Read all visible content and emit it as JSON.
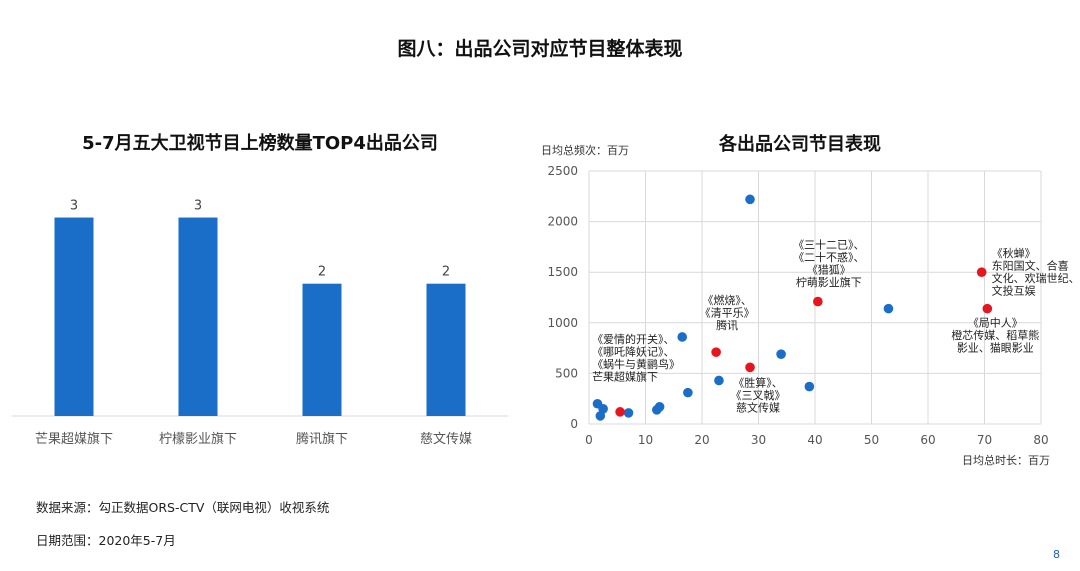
{
  "page": {
    "title": "图八：出品公司对应节目整体表现",
    "source_note": "数据来源：勾正数据ORS-CTV（联网电视）收视系统",
    "range_note": "日期范围：2020年5-7月",
    "page_number": "8"
  },
  "colors": {
    "bar": "#1a6ec8",
    "point": "#1a6ec8",
    "highlight": "#e8141e",
    "grid": "#d9d9d9"
  },
  "chart_data": [
    {
      "type": "bar",
      "title": "5-7月五大卫视节目上榜数量TOP4出品公司",
      "categories": [
        "芒果超媒旗下",
        "柠檬影业旗下",
        "腾讯旗下",
        "慈文传媒"
      ],
      "values": [
        3,
        3,
        2,
        2
      ],
      "data_labels": [
        "3",
        "3",
        "2",
        "2"
      ],
      "ylim": [
        0,
        3.9
      ],
      "grid": false
    },
    {
      "type": "scatter",
      "title": "各出品公司节目表现",
      "xlabel": "日均总时长：百万",
      "ylabel": "日均总频次：百万",
      "xlim": [
        0,
        80
      ],
      "ylim": [
        0,
        2500
      ],
      "x_ticks": [
        0,
        10,
        20,
        30,
        40,
        50,
        60,
        70,
        80
      ],
      "y_ticks": [
        0,
        500,
        1000,
        1500,
        2000,
        2500
      ],
      "grid": true,
      "series": [
        {
          "points": [
            {
              "x": 1.5,
              "y": 200
            },
            {
              "x": 2,
              "y": 80
            },
            {
              "x": 2.5,
              "y": 150
            },
            {
              "x": 7,
              "y": 110
            },
            {
              "x": 12,
              "y": 140
            },
            {
              "x": 12.5,
              "y": 170
            },
            {
              "x": 17.5,
              "y": 310
            },
            {
              "x": 16.5,
              "y": 860
            },
            {
              "x": 23,
              "y": 430
            },
            {
              "x": 28.5,
              "y": 2220
            },
            {
              "x": 34,
              "y": 690
            },
            {
              "x": 39,
              "y": 370
            },
            {
              "x": 53,
              "y": 1140
            }
          ]
        },
        {
          "highlight": true,
          "points": [
            {
              "x": 5.5,
              "y": 120,
              "annotation": [
                "《爱情的开关》、",
                "《哪吒降妖记》、",
                "《蜗牛与黄鹂鸟》",
                "芒果超媒旗下"
              ]
            },
            {
              "x": 22.5,
              "y": 710,
              "annotation": [
                "《燃烧》、",
                "《清平乐》",
                "腾讯"
              ]
            },
            {
              "x": 28.5,
              "y": 560,
              "annotation": [
                "《胜算》、",
                "《三叉戟》",
                "慈文传媒"
              ]
            },
            {
              "x": 40.5,
              "y": 1210,
              "annotation": [
                "《三十二已》、",
                "《二十不惑》、",
                "《猎狐》",
                "柠萌影业旗下"
              ]
            },
            {
              "x": 69.5,
              "y": 1500,
              "annotation": [
                "《秋蝉》",
                "东阳国文、合喜",
                "文化、欢瑞世纪、",
                "文投互娱"
              ]
            },
            {
              "x": 70.5,
              "y": 1140,
              "annotation": [
                "《局中人》",
                "橙芯传媒、稻草熊",
                "影业、猫眼影业"
              ]
            }
          ]
        }
      ]
    }
  ]
}
